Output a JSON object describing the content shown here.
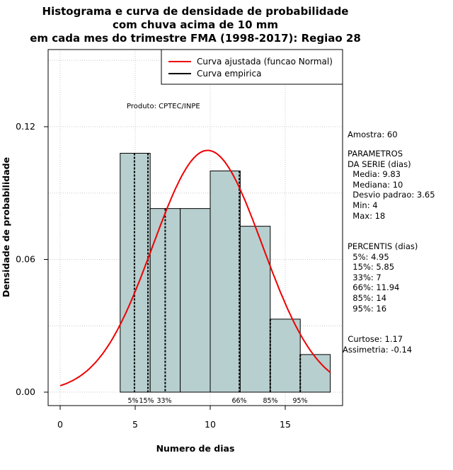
{
  "chart_data": {
    "type": "bar",
    "title": [
      "Histograma e curva de densidade de probabilidade",
      "com chuva acima de 10 mm",
      "em cada mes do trimestre FMA (1998-2017): Regiao 28"
    ],
    "xlabel": "Numero de dias",
    "ylabel": "Densidade de probabilidade",
    "xlim": [
      -0.5,
      18.5
    ],
    "ylim": [
      0,
      0.15
    ],
    "x_ticks": [
      0,
      5,
      10,
      15
    ],
    "y_ticks": [
      0.0,
      0.06,
      0.12
    ],
    "y_tick_labels": [
      "0.00",
      "0.06",
      "0.12"
    ],
    "grid": true,
    "legend_position": "top-right",
    "legend": [
      {
        "label": "Curva ajustada (funcao Normal)",
        "color": "#ee0000"
      },
      {
        "label": "Curva empirica",
        "color": "#000000"
      }
    ],
    "product_note": "Produto: CPTEC/INPE",
    "histogram": {
      "color": "#b8cfcf",
      "bins": [
        {
          "x0": 4,
          "x1": 6,
          "density": 0.108
        },
        {
          "x0": 6,
          "x1": 8,
          "density": 0.083
        },
        {
          "x0": 8,
          "x1": 10,
          "density": 0.083
        },
        {
          "x0": 10,
          "x1": 12,
          "density": 0.1
        },
        {
          "x0": 12,
          "x1": 14,
          "density": 0.075
        },
        {
          "x0": 14,
          "x1": 16,
          "density": 0.033
        },
        {
          "x0": 16,
          "x1": 18,
          "density": 0.017
        }
      ]
    },
    "normal_fit": {
      "mean": 9.83,
      "sd": 3.65,
      "x_from": 0,
      "x_to": 18,
      "color": "#ee0000"
    },
    "percentile_lines": [
      {
        "label": "5%",
        "x": 4.95
      },
      {
        "label": "15%",
        "x": 5.85
      },
      {
        "label": "33%",
        "x": 7
      },
      {
        "label": "66%",
        "x": 11.94
      },
      {
        "label": "85%",
        "x": 14
      },
      {
        "label": "95%",
        "x": 16
      }
    ]
  },
  "stats_panel": {
    "amostra": "Amostra: 60",
    "params_block": "PARAMETROS\nDA SERIE (dias)\n  Media: 9.83\n  Mediana: 10\n  Desvio padrao: 3.65\n  Min: 4\n  Max: 18",
    "percentis_block": "PERCENTIS (dias)\n  5%: 4.95\n  15%: 5.85\n  33%: 7\n  66%: 11.94\n  85%: 14\n  95%: 16",
    "shape_block": "  Curtose: 1.17\nAssimetria: -0.14"
  }
}
